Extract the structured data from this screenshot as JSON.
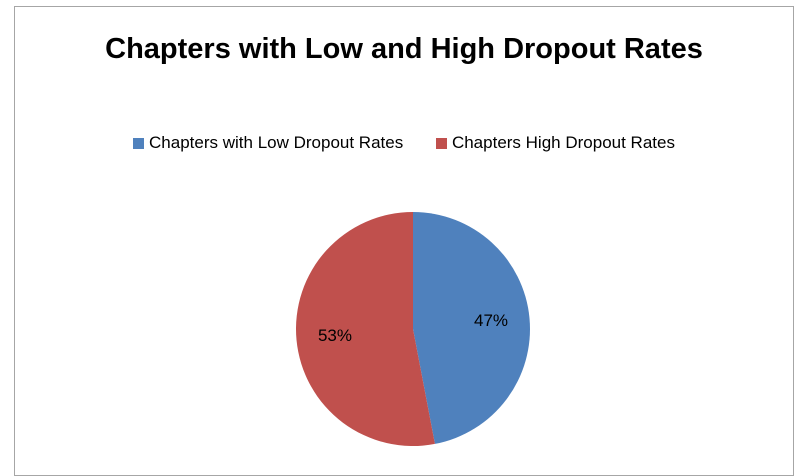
{
  "chart_data": {
    "type": "pie",
    "title": "Chapters with Low and High Dropout Rates",
    "slices": [
      {
        "label": "Chapters with Low Dropout Rates",
        "value": 47,
        "display": "47%",
        "color": "#4f81bd"
      },
      {
        "label": "Chapters High Dropout Rates",
        "value": 53,
        "display": "53%",
        "color": "#c0504d"
      }
    ],
    "legend_position": "top"
  }
}
